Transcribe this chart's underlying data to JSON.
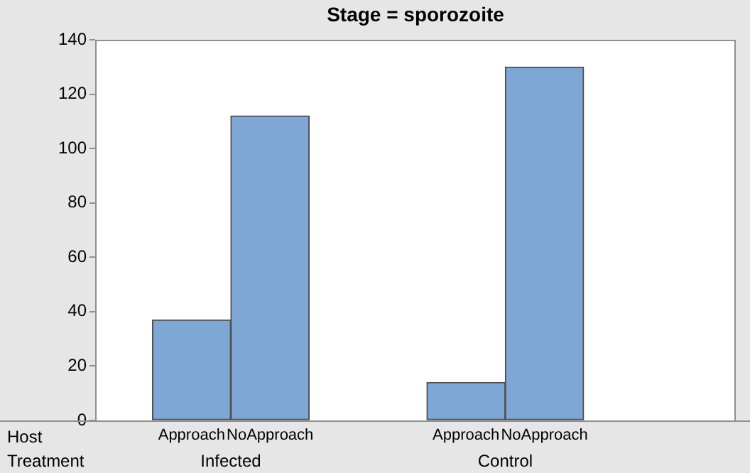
{
  "chart_data": {
    "type": "bar",
    "title": "Stage = sporozoite",
    "categories": [
      "Approach",
      "NoApproach",
      "Approach",
      "NoApproach"
    ],
    "values": [
      37,
      112,
      14,
      130
    ],
    "color": "#7fa7d6",
    "ylim": [
      0,
      140
    ],
    "yticks": [
      0,
      20,
      40,
      60,
      80,
      100,
      120,
      140
    ],
    "grid": false,
    "legend": false,
    "annotations": [
      "Host",
      "Treatment",
      "Infected",
      "Control"
    ]
  }
}
